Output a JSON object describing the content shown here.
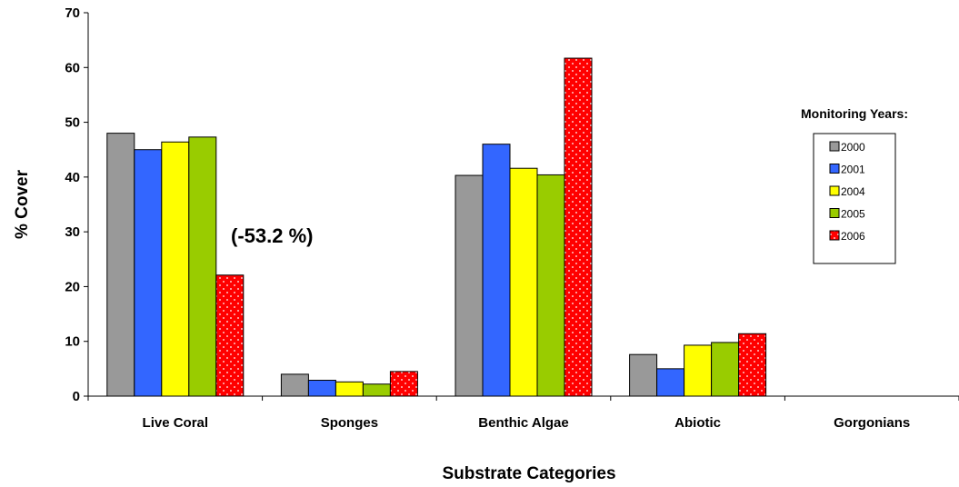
{
  "chart_data": {
    "type": "bar",
    "title": "",
    "xlabel": "Substrate Categories",
    "ylabel": "% Cover",
    "ylim": [
      0,
      70
    ],
    "yticks": [
      0,
      10,
      20,
      30,
      40,
      50,
      60,
      70
    ],
    "categories": [
      "Live Coral",
      "Sponges",
      "Benthic Algae",
      "Abiotic",
      "Gorgonians"
    ],
    "series": [
      {
        "name": "2000",
        "color": "#999999",
        "values": [
          48.0,
          4.0,
          40.3,
          7.6,
          0
        ]
      },
      {
        "name": "2001",
        "color": "#3366ff",
        "values": [
          45.0,
          2.9,
          46.0,
          5.0,
          0
        ]
      },
      {
        "name": "2004",
        "color": "#ffff00",
        "values": [
          46.4,
          2.6,
          41.6,
          9.3,
          0
        ]
      },
      {
        "name": "2005",
        "color": "#99cc00",
        "values": [
          47.3,
          2.2,
          40.4,
          9.8,
          0
        ]
      },
      {
        "name": "2006",
        "color": "#ff0000",
        "pattern": "dotted",
        "values": [
          22.1,
          4.5,
          61.7,
          11.4,
          0
        ]
      }
    ],
    "legend": {
      "title": "Monitoring Years:",
      "position": "right"
    },
    "annotations": [
      {
        "text": "(-53.2 %)",
        "category": "Live Coral",
        "series": "2006"
      }
    ],
    "grid": false
  }
}
